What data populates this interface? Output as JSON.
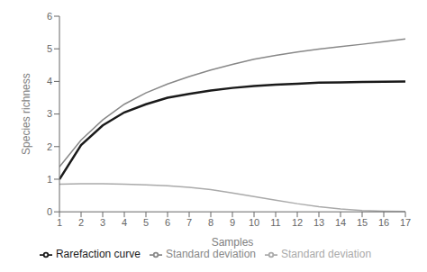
{
  "chart_data": {
    "type": "line",
    "x": [
      1,
      2,
      3,
      4,
      5,
      6,
      7,
      8,
      9,
      10,
      11,
      12,
      13,
      14,
      15,
      16,
      17
    ],
    "series": [
      {
        "name": "Standard deviation",
        "color": "#888888",
        "values": [
          1.38,
          2.2,
          2.82,
          3.3,
          3.65,
          3.92,
          4.15,
          4.35,
          4.52,
          4.68,
          4.8,
          4.9,
          4.99,
          5.07,
          5.14,
          5.22,
          5.3
        ]
      },
      {
        "name": "Rarefaction curve",
        "color": "#1a1a1a",
        "values": [
          1.0,
          2.05,
          2.65,
          3.05,
          3.3,
          3.5,
          3.62,
          3.72,
          3.8,
          3.86,
          3.9,
          3.93,
          3.96,
          3.97,
          3.98,
          3.99,
          4.0
        ]
      },
      {
        "name": "Standard deviation",
        "color": "#aaaaaa",
        "values": [
          0.85,
          0.86,
          0.86,
          0.85,
          0.83,
          0.8,
          0.75,
          0.68,
          0.58,
          0.47,
          0.36,
          0.25,
          0.16,
          0.09,
          0.04,
          0.02,
          0.01
        ]
      }
    ],
    "xlabel": "Samples",
    "ylabel": "Species richness",
    "xlim": [
      1,
      17
    ],
    "ylim": [
      0,
      6
    ],
    "xticks": [
      1,
      2,
      3,
      4,
      5,
      6,
      7,
      8,
      9,
      10,
      11,
      12,
      13,
      14,
      15,
      16,
      17
    ],
    "yticks": [
      0,
      1,
      2,
      3,
      4,
      5,
      6
    ],
    "grid": false,
    "legend": "bottom"
  }
}
